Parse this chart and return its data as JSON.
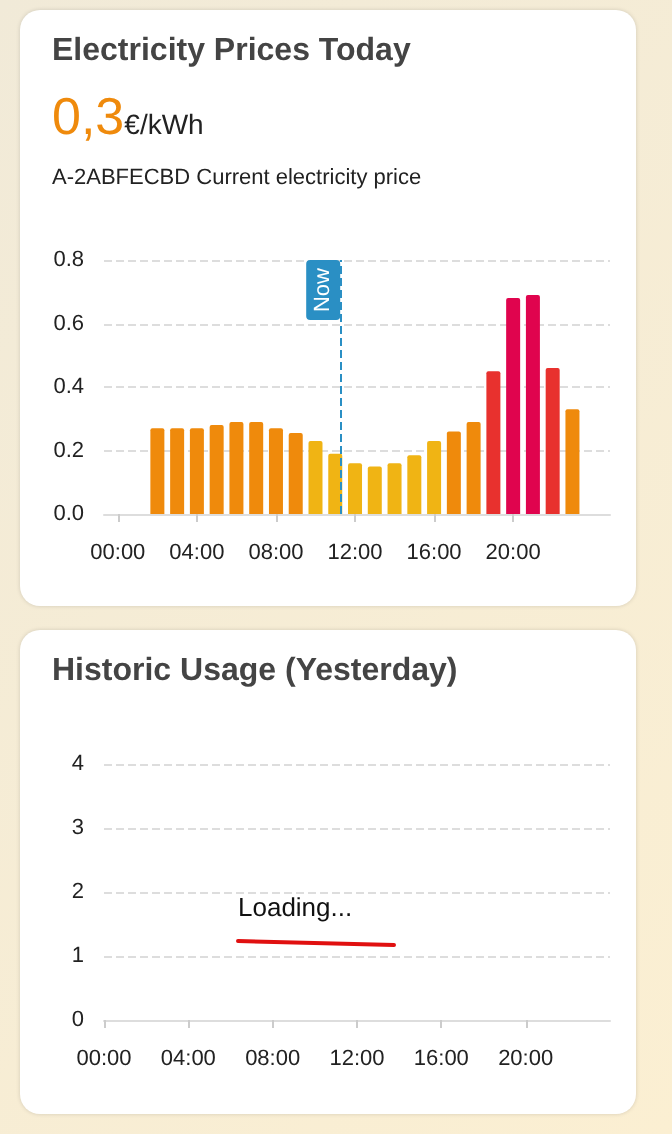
{
  "chart_data": [
    {
      "type": "bar",
      "title": "Electricity Prices Today",
      "subtitle": "0,3€/kWh",
      "annotations": [
        "A-2ABFECBD Current electricity price"
      ],
      "x": [
        2,
        3,
        4,
        5,
        6,
        7,
        8,
        9,
        10,
        11,
        12,
        13,
        14,
        15,
        16,
        17,
        18,
        19,
        20,
        21,
        22,
        23
      ],
      "values": [
        0.27,
        0.27,
        0.27,
        0.28,
        0.29,
        0.29,
        0.27,
        0.255,
        0.23,
        0.19,
        0.16,
        0.15,
        0.16,
        0.185,
        0.23,
        0.26,
        0.29,
        0.45,
        0.68,
        0.69,
        0.46,
        0.33
      ],
      "colors": [
        "#ef8a0c",
        "#ef8a0c",
        "#ef8a0c",
        "#ef8a0c",
        "#ef8a0c",
        "#ef8a0c",
        "#ef8a0c",
        "#ef8a0c",
        "#f0b414",
        "#f0b414",
        "#f0b414",
        "#f0b414",
        "#f0b414",
        "#f0b414",
        "#f0b414",
        "#ef8a0c",
        "#ef8a0c",
        "#e8312e",
        "#e0044e",
        "#e0044e",
        "#e8312e",
        "#ef8a0c"
      ],
      "xlim": [
        -0.7,
        24.9
      ],
      "xticks": [
        {
          "value": 0,
          "label": "00:00"
        },
        {
          "value": 4,
          "label": "04:00"
        },
        {
          "value": 8,
          "label": "08:00"
        },
        {
          "value": 12,
          "label": "12:00"
        },
        {
          "value": 16,
          "label": "16:00"
        },
        {
          "value": 20,
          "label": "20:00"
        }
      ],
      "ylim": [
        0,
        0.8
      ],
      "yticks": [
        {
          "value": 0,
          "label": "0.0"
        },
        0.2,
        0.4,
        0.6,
        0.8
      ],
      "grid": "y",
      "ref_lines": [
        {
          "axis": "x",
          "value": 11.25,
          "label": "Now",
          "color": "#2a8fc4",
          "line_style": "dashed"
        }
      ]
    },
    {
      "type": "line",
      "title": "Historic Usage (Yesterday)",
      "annotations": [
        "Loading..."
      ],
      "xlim": [
        0,
        24
      ],
      "xticks": [
        {
          "value": 0,
          "label": "00:00"
        },
        {
          "value": 4,
          "label": "04:00"
        },
        {
          "value": 8,
          "label": "08:00"
        },
        {
          "value": 12,
          "label": "12:00"
        },
        {
          "value": 16,
          "label": "16:00"
        },
        {
          "value": 20,
          "label": "20:00"
        }
      ],
      "ylim": [
        0,
        4
      ],
      "yticks": [
        0,
        1,
        2,
        3,
        4
      ],
      "grid": "y"
    }
  ]
}
